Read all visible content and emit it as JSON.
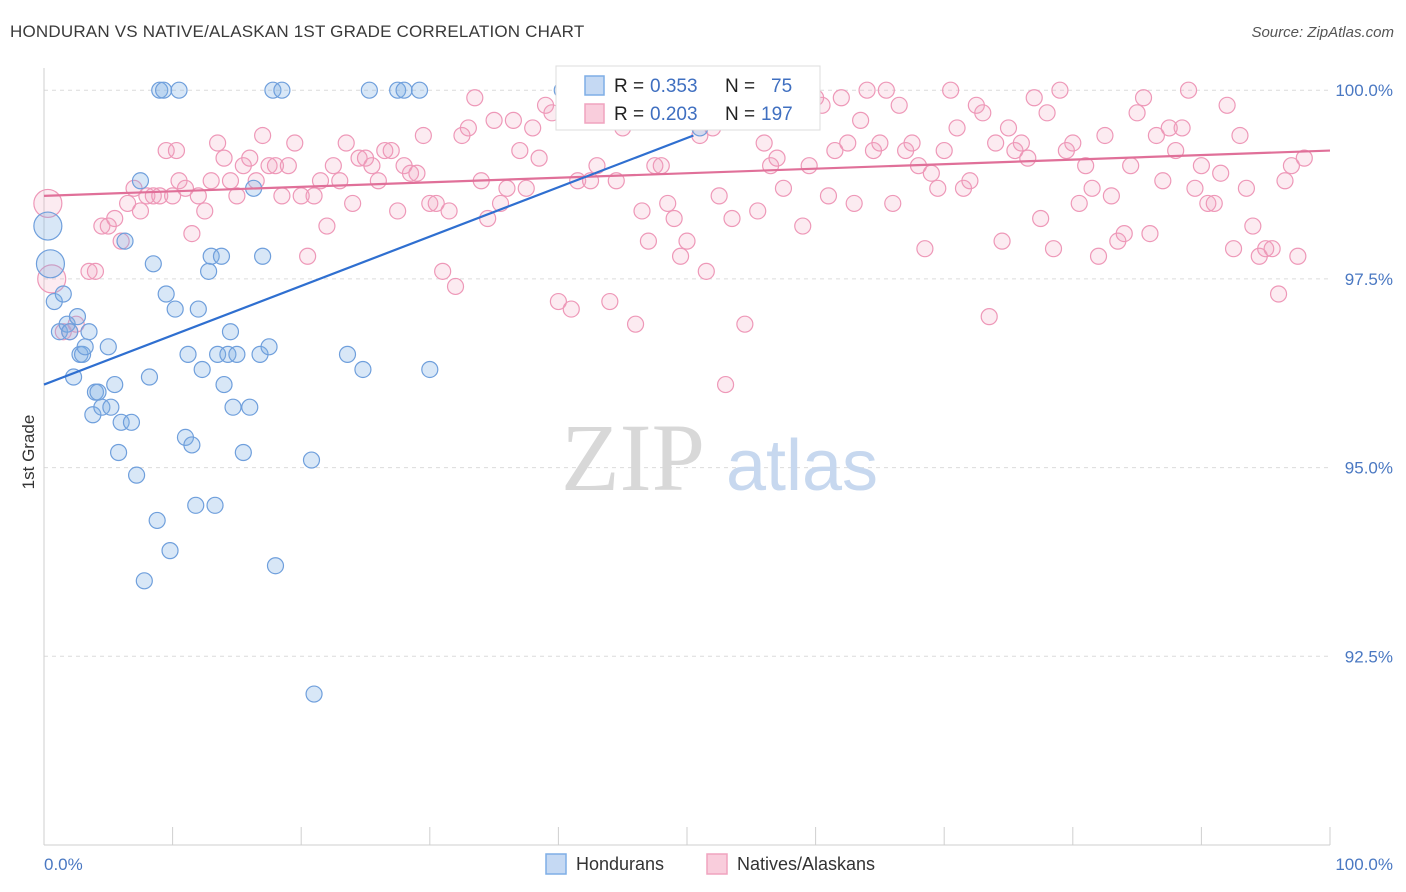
{
  "title": "HONDURAN VS NATIVE/ALASKAN 1ST GRADE CORRELATION CHART",
  "source": "Source: ZipAtlas.com",
  "watermark": {
    "zip": "ZIP",
    "atlas": "atlas"
  },
  "colors": {
    "blue": "#7eaee6",
    "blue_line": "#2f6fd0",
    "pink": "#f0a3bf",
    "pink_line": "#e07099",
    "tick_text": "#4a78c2"
  },
  "chart_data": {
    "type": "scatter",
    "title": "HONDURAN VS NATIVE/ALASKAN 1ST GRADE CORRELATION CHART",
    "xlabel": "",
    "ylabel": "1st Grade",
    "xlim": [
      0,
      100
    ],
    "ylim": [
      90.0,
      100.4
    ],
    "x_tick_labels": [
      "0.0%",
      "100.0%"
    ],
    "y_ticks": [
      92.5,
      95.0,
      97.5,
      100.0
    ],
    "y_tick_labels": [
      "92.5%",
      "95.0%",
      "97.5%",
      "100.0%"
    ],
    "grid": "horizontal dashed",
    "legend_placement": "bottom-center",
    "stats": [
      {
        "r_label": "R =",
        "r": "0.353",
        "n_label": "N =",
        "n": "75"
      },
      {
        "r_label": "R =",
        "r": "0.203",
        "n_label": "N =",
        "n": "197"
      }
    ],
    "series": [
      {
        "name": "Hondurans",
        "color": "#7eaee6",
        "trend": [
          [
            0,
            96.1
          ],
          [
            50.5,
            99.4
          ]
        ],
        "points": [
          [
            0.3,
            98.2
          ],
          [
            0.5,
            97.7
          ],
          [
            0.8,
            97.2
          ],
          [
            1.2,
            96.8
          ],
          [
            1.5,
            97.3
          ],
          [
            1.8,
            96.9
          ],
          [
            2.0,
            96.8
          ],
          [
            2.3,
            96.2
          ],
          [
            2.6,
            97.0
          ],
          [
            2.8,
            96.5
          ],
          [
            3.0,
            96.5
          ],
          [
            3.2,
            96.6
          ],
          [
            3.5,
            96.8
          ],
          [
            3.8,
            95.7
          ],
          [
            4.0,
            96.0
          ],
          [
            4.2,
            96.0
          ],
          [
            4.5,
            95.8
          ],
          [
            5.0,
            96.6
          ],
          [
            5.2,
            95.8
          ],
          [
            5.5,
            96.1
          ],
          [
            5.8,
            95.2
          ],
          [
            6.0,
            95.6
          ],
          [
            6.3,
            98.0
          ],
          [
            6.8,
            95.6
          ],
          [
            7.2,
            94.9
          ],
          [
            7.5,
            98.8
          ],
          [
            7.8,
            93.5
          ],
          [
            8.2,
            96.2
          ],
          [
            8.5,
            97.7
          ],
          [
            8.8,
            94.3
          ],
          [
            9.0,
            100.0
          ],
          [
            9.3,
            100.0
          ],
          [
            9.5,
            97.3
          ],
          [
            9.8,
            93.9
          ],
          [
            10.2,
            97.1
          ],
          [
            10.5,
            100.0
          ],
          [
            11.0,
            95.4
          ],
          [
            11.2,
            96.5
          ],
          [
            11.5,
            95.3
          ],
          [
            11.8,
            94.5
          ],
          [
            12.0,
            97.1
          ],
          [
            12.3,
            96.3
          ],
          [
            12.8,
            97.6
          ],
          [
            13.0,
            97.8
          ],
          [
            13.3,
            94.5
          ],
          [
            13.5,
            96.5
          ],
          [
            13.8,
            97.8
          ],
          [
            14.0,
            96.1
          ],
          [
            14.3,
            96.5
          ],
          [
            14.5,
            96.8
          ],
          [
            14.7,
            95.8
          ],
          [
            15.0,
            96.5
          ],
          [
            15.5,
            95.2
          ],
          [
            16.0,
            95.8
          ],
          [
            16.3,
            98.7
          ],
          [
            16.8,
            96.5
          ],
          [
            17.0,
            97.8
          ],
          [
            17.5,
            96.6
          ],
          [
            17.8,
            100.0
          ],
          [
            18.0,
            93.7
          ],
          [
            18.5,
            100.0
          ],
          [
            20.8,
            95.1
          ],
          [
            21.0,
            92.0
          ],
          [
            23.6,
            96.5
          ],
          [
            24.8,
            96.3
          ],
          [
            25.3,
            100.0
          ],
          [
            27.5,
            100.0
          ],
          [
            28.0,
            100.0
          ],
          [
            29.2,
            100.0
          ],
          [
            30.0,
            96.3
          ],
          [
            40.3,
            100.0
          ],
          [
            45.5,
            99.9
          ],
          [
            49.4,
            99.9
          ],
          [
            50.5,
            99.7
          ],
          [
            51.0,
            99.5
          ]
        ]
      },
      {
        "name": "Natives/Alaskans",
        "color": "#f0a3bf",
        "trend": [
          [
            0,
            98.6
          ],
          [
            100,
            99.2
          ]
        ],
        "points": [
          [
            0.3,
            98.5
          ],
          [
            0.6,
            97.5
          ],
          [
            1.5,
            96.8
          ],
          [
            2.0,
            96.8
          ],
          [
            2.5,
            96.9
          ],
          [
            3.5,
            97.6
          ],
          [
            4.0,
            97.6
          ],
          [
            4.5,
            98.2
          ],
          [
            5.0,
            98.2
          ],
          [
            5.5,
            98.3
          ],
          [
            6.0,
            98.0
          ],
          [
            6.5,
            98.5
          ],
          [
            7.0,
            98.7
          ],
          [
            7.5,
            98.4
          ],
          [
            8.0,
            98.6
          ],
          [
            8.5,
            98.6
          ],
          [
            9.0,
            98.6
          ],
          [
            9.5,
            99.2
          ],
          [
            10.0,
            98.6
          ],
          [
            10.3,
            99.2
          ],
          [
            10.5,
            98.8
          ],
          [
            11.0,
            98.7
          ],
          [
            11.5,
            98.1
          ],
          [
            12.0,
            98.6
          ],
          [
            12.5,
            98.4
          ],
          [
            13.0,
            98.8
          ],
          [
            13.5,
            99.3
          ],
          [
            14.0,
            99.1
          ],
          [
            14.5,
            98.8
          ],
          [
            15.0,
            98.6
          ],
          [
            15.5,
            99.0
          ],
          [
            16.0,
            99.1
          ],
          [
            16.5,
            98.8
          ],
          [
            17.0,
            99.4
          ],
          [
            17.5,
            99.0
          ],
          [
            18.0,
            99.0
          ],
          [
            18.5,
            98.6
          ],
          [
            19.0,
            99.0
          ],
          [
            19.5,
            99.3
          ],
          [
            20.0,
            98.6
          ],
          [
            20.5,
            97.8
          ],
          [
            21.0,
            98.6
          ],
          [
            21.5,
            98.8
          ],
          [
            22.0,
            98.2
          ],
          [
            22.5,
            99.0
          ],
          [
            23.0,
            98.8
          ],
          [
            23.5,
            99.3
          ],
          [
            24.0,
            98.5
          ],
          [
            24.5,
            99.1
          ],
          [
            25.0,
            99.1
          ],
          [
            25.5,
            99.0
          ],
          [
            26.0,
            98.8
          ],
          [
            26.5,
            99.2
          ],
          [
            27.0,
            99.2
          ],
          [
            27.5,
            98.4
          ],
          [
            28.0,
            99.0
          ],
          [
            28.5,
            98.9
          ],
          [
            29.0,
            98.9
          ],
          [
            29.5,
            99.4
          ],
          [
            30.0,
            98.5
          ],
          [
            30.5,
            98.5
          ],
          [
            31.0,
            97.6
          ],
          [
            31.5,
            98.4
          ],
          [
            32.0,
            97.4
          ],
          [
            32.5,
            99.4
          ],
          [
            33.0,
            99.5
          ],
          [
            33.5,
            99.9
          ],
          [
            34.0,
            98.8
          ],
          [
            34.5,
            98.3
          ],
          [
            35.0,
            99.6
          ],
          [
            35.5,
            98.5
          ],
          [
            36.0,
            98.7
          ],
          [
            36.5,
            99.6
          ],
          [
            37.0,
            99.2
          ],
          [
            37.5,
            98.7
          ],
          [
            38.0,
            99.5
          ],
          [
            38.5,
            99.1
          ],
          [
            39.0,
            99.8
          ],
          [
            39.5,
            99.7
          ],
          [
            40.0,
            97.2
          ],
          [
            40.5,
            99.8
          ],
          [
            41.0,
            97.1
          ],
          [
            41.5,
            98.8
          ],
          [
            42.0,
            99.6
          ],
          [
            42.5,
            98.8
          ],
          [
            43.0,
            99.0
          ],
          [
            43.5,
            99.9
          ],
          [
            44.0,
            97.2
          ],
          [
            44.5,
            98.8
          ],
          [
            45.0,
            99.5
          ],
          [
            45.5,
            99.6
          ],
          [
            46.0,
            96.9
          ],
          [
            46.5,
            98.4
          ],
          [
            47.0,
            98.0
          ],
          [
            47.5,
            99.0
          ],
          [
            48.0,
            99.0
          ],
          [
            48.5,
            98.5
          ],
          [
            49.0,
            98.3
          ],
          [
            49.5,
            97.8
          ],
          [
            50.0,
            98.0
          ],
          [
            50.5,
            99.6
          ],
          [
            51.0,
            99.4
          ],
          [
            51.5,
            97.6
          ],
          [
            52.0,
            99.5
          ],
          [
            52.5,
            98.6
          ],
          [
            53.0,
            96.1
          ],
          [
            53.5,
            98.3
          ],
          [
            54.0,
            99.9
          ],
          [
            54.5,
            96.9
          ],
          [
            55.0,
            99.8
          ],
          [
            55.5,
            98.4
          ],
          [
            56.0,
            99.3
          ],
          [
            56.5,
            99.0
          ],
          [
            57.0,
            99.1
          ],
          [
            57.5,
            98.7
          ],
          [
            58.0,
            99.9
          ],
          [
            58.5,
            99.6
          ],
          [
            59.0,
            98.2
          ],
          [
            59.5,
            99.0
          ],
          [
            60.0,
            99.9
          ],
          [
            60.5,
            99.8
          ],
          [
            61.0,
            98.6
          ],
          [
            61.5,
            99.2
          ],
          [
            62.0,
            99.9
          ],
          [
            62.5,
            99.3
          ],
          [
            63.0,
            98.5
          ],
          [
            63.5,
            99.6
          ],
          [
            64.0,
            100.0
          ],
          [
            64.5,
            99.2
          ],
          [
            65.0,
            99.3
          ],
          [
            65.5,
            100.0
          ],
          [
            66.0,
            98.5
          ],
          [
            66.5,
            99.8
          ],
          [
            67.0,
            99.2
          ],
          [
            67.5,
            99.3
          ],
          [
            68.0,
            99.0
          ],
          [
            68.5,
            97.9
          ],
          [
            69.0,
            98.9
          ],
          [
            69.5,
            98.7
          ],
          [
            70.0,
            99.2
          ],
          [
            70.5,
            100.0
          ],
          [
            71.0,
            99.5
          ],
          [
            71.5,
            98.7
          ],
          [
            72.0,
            98.8
          ],
          [
            72.5,
            99.8
          ],
          [
            73.0,
            99.7
          ],
          [
            73.5,
            97.0
          ],
          [
            74.0,
            99.3
          ],
          [
            74.5,
            98.0
          ],
          [
            75.0,
            99.5
          ],
          [
            75.5,
            99.2
          ],
          [
            76.0,
            99.3
          ],
          [
            76.5,
            99.1
          ],
          [
            77.0,
            99.9
          ],
          [
            77.5,
            98.3
          ],
          [
            78.0,
            99.7
          ],
          [
            78.5,
            97.9
          ],
          [
            79.0,
            100.0
          ],
          [
            79.5,
            99.2
          ],
          [
            80.0,
            99.3
          ],
          [
            80.5,
            98.5
          ],
          [
            81.0,
            99.0
          ],
          [
            81.5,
            98.7
          ],
          [
            82.0,
            97.8
          ],
          [
            82.5,
            99.4
          ],
          [
            83.0,
            98.6
          ],
          [
            83.5,
            98.0
          ],
          [
            84.0,
            98.1
          ],
          [
            84.5,
            99.0
          ],
          [
            85.0,
            99.7
          ],
          [
            85.5,
            99.9
          ],
          [
            86.0,
            98.1
          ],
          [
            86.5,
            99.4
          ],
          [
            87.0,
            98.8
          ],
          [
            87.5,
            99.5
          ],
          [
            88.0,
            99.2
          ],
          [
            88.5,
            99.5
          ],
          [
            89.0,
            100.0
          ],
          [
            89.5,
            98.7
          ],
          [
            90.0,
            99.0
          ],
          [
            90.5,
            98.5
          ],
          [
            91.0,
            98.5
          ],
          [
            91.5,
            98.9
          ],
          [
            92.0,
            99.8
          ],
          [
            92.5,
            97.9
          ],
          [
            93.0,
            99.4
          ],
          [
            93.5,
            98.7
          ],
          [
            94.0,
            98.2
          ],
          [
            94.5,
            97.8
          ],
          [
            95.0,
            97.9
          ],
          [
            95.5,
            97.9
          ],
          [
            96.0,
            97.3
          ],
          [
            96.5,
            98.8
          ],
          [
            97.0,
            99.0
          ],
          [
            97.5,
            97.8
          ],
          [
            98.0,
            99.1
          ]
        ]
      }
    ]
  }
}
